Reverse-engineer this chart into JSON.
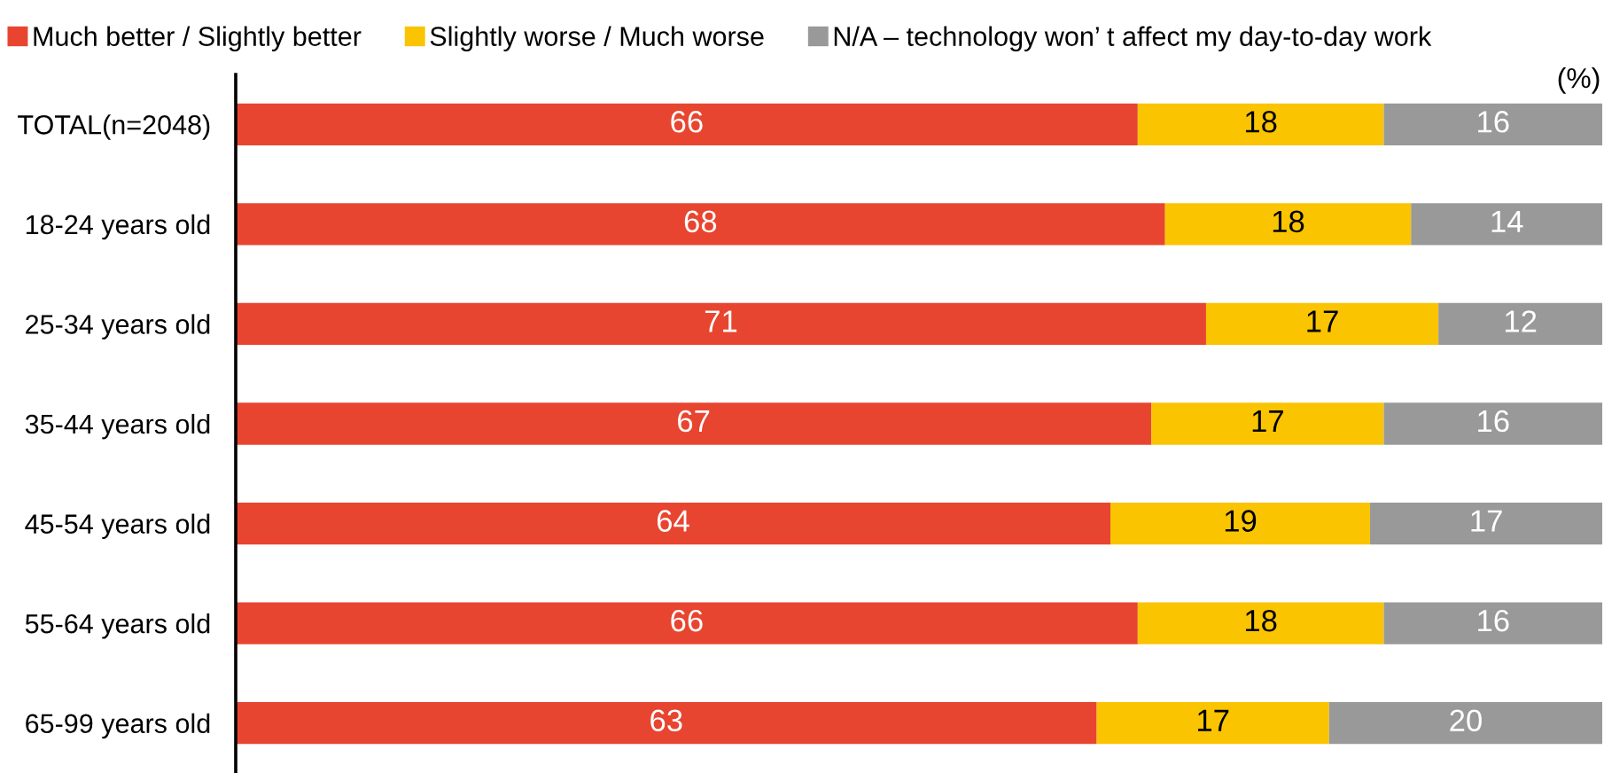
{
  "chart_data": {
    "type": "bar",
    "orientation": "horizontal",
    "stacked": true,
    "categories": [
      "TOTAL(n=2048)",
      "18-24 years old",
      "25-34 years old",
      "35-44 years old",
      "45-54 years old",
      "55-64 years old",
      "65-99 years old"
    ],
    "series": [
      {
        "name": "Much better / Slightly better",
        "color": "#e84530",
        "values": [
          66,
          68,
          71,
          67,
          64,
          66,
          63
        ]
      },
      {
        "name": "Slightly worse / Much worse",
        "color": "#fac400",
        "values": [
          18,
          18,
          17,
          17,
          19,
          18,
          17
        ]
      },
      {
        "name": "N/A – technology won’ t affect my day-to-day work",
        "color": "#999999",
        "values": [
          16,
          14,
          12,
          16,
          17,
          16,
          20
        ]
      }
    ],
    "xlim": [
      0,
      100
    ],
    "tick_labels": "y",
    "data_labels": true,
    "legend": "top",
    "grid": false,
    "annotations": [
      "(%)"
    ]
  }
}
